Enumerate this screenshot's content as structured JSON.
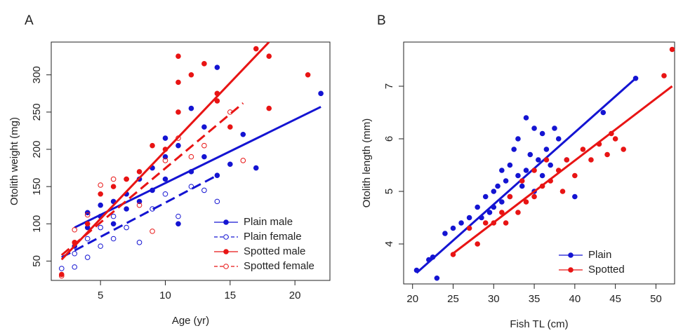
{
  "chart_data": [
    {
      "type": "scatter",
      "panel_label": "A",
      "x_label": "Age (yr)",
      "y_label": "Otolith weight (mg)",
      "xlim": [
        1.2,
        22.7
      ],
      "ylim": [
        24,
        344
      ],
      "xticks": [
        5,
        10,
        15,
        20
      ],
      "yticks": [
        50,
        100,
        150,
        200,
        250,
        300
      ],
      "legend": "bottom-right",
      "series": [
        {
          "name": "Plain male",
          "color": "#1414d2",
          "marker": "filled",
          "dash": false,
          "x": [
            3,
            4,
            4,
            5,
            5,
            6,
            6,
            7,
            7,
            8,
            8,
            9,
            9,
            10,
            10,
            10,
            11,
            11,
            12,
            12,
            13,
            13,
            14,
            14,
            15,
            16,
            17,
            22
          ],
          "values": [
            70,
            95,
            115,
            110,
            125,
            130,
            100,
            140,
            120,
            160,
            130,
            175,
            145,
            215,
            190,
            160,
            205,
            100,
            255,
            170,
            230,
            190,
            310,
            165,
            180,
            220,
            175,
            275
          ],
          "fit_x": [
            3,
            22
          ],
          "fit_values": [
            95,
            257
          ]
        },
        {
          "name": "Plain female",
          "color": "#1414d2",
          "marker": "open",
          "dash": true,
          "x": [
            2,
            3,
            3,
            4,
            4,
            5,
            5,
            6,
            6,
            7,
            8,
            9,
            10,
            11,
            12,
            13,
            14
          ],
          "values": [
            40,
            42,
            60,
            55,
            80,
            70,
            95,
            80,
            110,
            95,
            75,
            120,
            140,
            110,
            150,
            145,
            130
          ],
          "fit_x": [
            2,
            14
          ],
          "fit_values": [
            55,
            165
          ]
        },
        {
          "name": "Spotted male",
          "color": "#e81414",
          "marker": "filled",
          "dash": false,
          "x": [
            2,
            3,
            4,
            5,
            6,
            7,
            8,
            9,
            10,
            11,
            11,
            11,
            12,
            13,
            14,
            14,
            15,
            17,
            18,
            18,
            21
          ],
          "values": [
            32,
            75,
            100,
            140,
            150,
            160,
            170,
            205,
            200,
            325,
            290,
            250,
            300,
            315,
            275,
            265,
            230,
            335,
            325,
            255,
            300
          ],
          "fit_x": [
            2,
            18
          ],
          "fit_values": [
            52,
            344
          ]
        },
        {
          "name": "Spotted female",
          "color": "#e81414",
          "marker": "open",
          "dash": true,
          "x": [
            2,
            3,
            4,
            5,
            6,
            7,
            8,
            9,
            10,
            11,
            12,
            13,
            15,
            16
          ],
          "values": [
            30,
            92,
            112,
            152,
            160,
            160,
            125,
            90,
            185,
            215,
            190,
            205,
            250,
            185
          ],
          "fit_x": [
            2,
            16
          ],
          "fit_values": [
            58,
            262
          ]
        }
      ]
    },
    {
      "type": "scatter",
      "panel_label": "B",
      "x_label": "Fish TL (cm)",
      "y_label": "Otolith length (mm)",
      "xlim": [
        18.9,
        52.3
      ],
      "ylim": [
        3.24,
        7.84
      ],
      "xticks": [
        20,
        25,
        30,
        35,
        40,
        45,
        50
      ],
      "yticks": [
        4,
        5,
        6,
        7
      ],
      "legend": "bottom-right",
      "series": [
        {
          "name": "Plain",
          "color": "#1414d2",
          "marker": "filled",
          "dash": false,
          "x": [
            20.5,
            22,
            22.5,
            23,
            24,
            25,
            26,
            27,
            28,
            28.5,
            29,
            29.5,
            30,
            30,
            30.5,
            31,
            31,
            31.5,
            32,
            32,
            32.5,
            33,
            33,
            33.5,
            34,
            34,
            34.5,
            35,
            35,
            35.5,
            36,
            36,
            36.5,
            37,
            37.5,
            38,
            39,
            40,
            43.5,
            47.5
          ],
          "values": [
            3.5,
            3.7,
            3.75,
            3.35,
            4.2,
            4.3,
            4.4,
            4.5,
            4.7,
            4.5,
            4.9,
            4.6,
            5.0,
            4.7,
            5.1,
            5.4,
            4.8,
            5.2,
            5.5,
            4.9,
            5.8,
            5.3,
            6.0,
            5.1,
            6.4,
            5.4,
            5.7,
            6.2,
            5.0,
            5.6,
            6.1,
            5.3,
            5.8,
            5.5,
            6.2,
            6.0,
            5.6,
            4.9,
            6.5,
            7.15
          ],
          "fit_x": [
            20.5,
            47.5
          ],
          "fit_values": [
            3.45,
            7.15
          ]
        },
        {
          "name": "Spotted",
          "color": "#e81414",
          "marker": "filled",
          "dash": false,
          "x": [
            25,
            27,
            28,
            29,
            30,
            31,
            31.5,
            32,
            33,
            33.5,
            34,
            35,
            35,
            36,
            36.5,
            37,
            38,
            38.5,
            39,
            40,
            41,
            42,
            43,
            44,
            44.5,
            45,
            46,
            51,
            52
          ],
          "values": [
            3.8,
            4.3,
            4.0,
            4.4,
            4.4,
            4.6,
            4.4,
            4.9,
            4.6,
            5.2,
            4.8,
            5.4,
            4.9,
            5.1,
            5.6,
            5.2,
            5.4,
            5.0,
            5.6,
            5.3,
            5.8,
            5.6,
            5.9,
            5.7,
            6.1,
            6.0,
            5.8,
            7.2,
            7.7
          ],
          "fit_x": [
            25,
            52
          ],
          "fit_values": [
            3.82,
            7.0
          ]
        }
      ]
    }
  ]
}
